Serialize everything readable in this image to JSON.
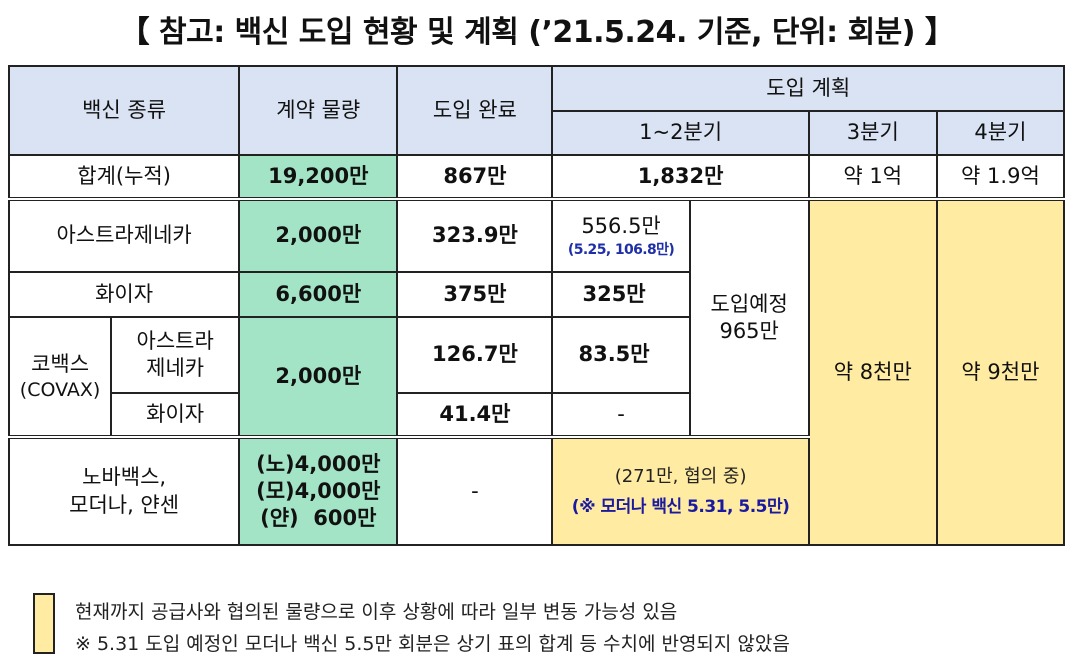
{
  "title": "【 참고: 백신 도입 현황 및 계획 (’21.5.24. 기준, 단위: 회분) 】",
  "header": {
    "vaccine_type": "백신 종류",
    "contract": "계약 물량",
    "delivered": "도입 완료",
    "plan": "도입 계획",
    "q12": "1~2분기",
    "q3": "3분기",
    "q4": "4분기"
  },
  "total": {
    "label": "합계(누적)",
    "contract": "19,200만",
    "delivered": "867만",
    "q12": "1,832만",
    "q3": "약 1억",
    "q4": "약 1.9억"
  },
  "rows": {
    "astrazeneca": {
      "label": "아스트라제네카",
      "contract": "2,000만",
      "delivered": "323.9만",
      "q12": "556.5만",
      "q12_sub": "(5.25, 106.8만)"
    },
    "pfizer": {
      "label": "화이자",
      "contract": "6,600만",
      "delivered": "375만",
      "q12": "325만"
    },
    "covax": {
      "label_line1": "코백스",
      "label_line2": "(COVAX)",
      "contract": "2,000만",
      "az_line1": "아스트라",
      "az_line2": "제네카",
      "az_delivered": "126.7만",
      "az_q12": "83.5만",
      "pf_label": "화이자",
      "pf_delivered": "41.4만",
      "pf_q12": "-"
    },
    "scheduled_line1": "도입예정",
    "scheduled_line2": "965만",
    "q3_estimate": "약 8천만",
    "q4_estimate": "약 9천만",
    "others": {
      "label_line1": "노바백스,",
      "label_line2": "모더나, 얀센",
      "contract_line1": "(노)4,000만",
      "contract_line2": "(모)4,000만",
      "contract_line3": "(얀)  600만",
      "delivered": "-",
      "note1": "(271만, 협의 중)",
      "note2": "(※ 모더나 백신 5.31, 5.5만)"
    }
  },
  "legend": {
    "line1": "현재까지 공급사와 협의된 물량으로 이후 상황에 따라 일부 변동 가능성 있음",
    "line2": "※ 5.31 도입 예정인 모더나 백신 5.5만 회분은 상기 표의 합계 등 수치에 반영되지 않았음"
  },
  "colors": {
    "header_bg": "#dae3f3",
    "contract_bg": "#a4e4c6",
    "tentative_bg": "#ffeba1"
  }
}
